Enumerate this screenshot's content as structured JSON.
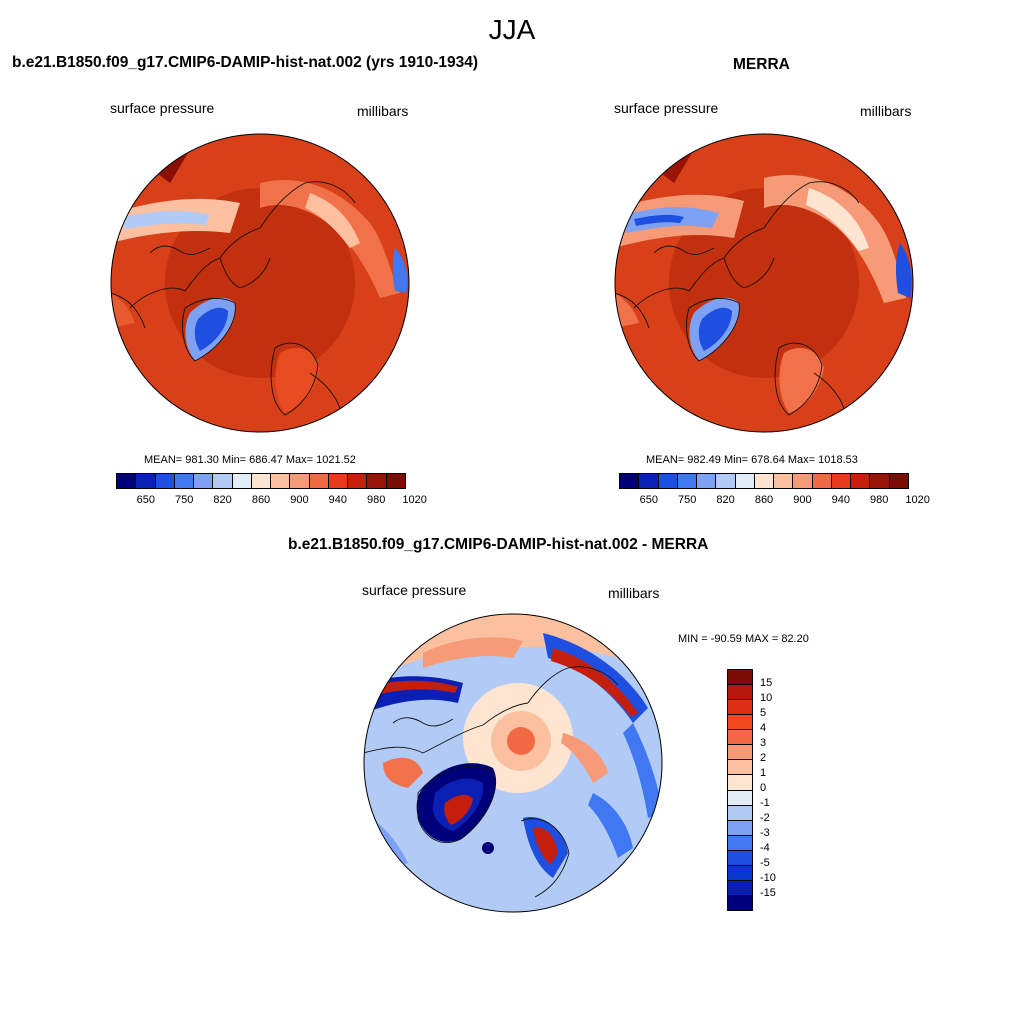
{
  "figure": {
    "title": "JJA"
  },
  "panels": {
    "model": {
      "title": "b.e21.B1850.f09_g17.CMIP6-DAMIP-hist-nat.002 (yrs 1910-1934)",
      "variable": "surface pressure",
      "units": "millibars",
      "stats": "MEAN= 981.30  Min= 686.47  Max= 1021.52"
    },
    "obs": {
      "title": "MERRA",
      "variable": "surface pressure",
      "units": "millibars",
      "stats": "MEAN= 982.49  Min= 678.64  Max= 1018.53"
    },
    "diff": {
      "title": "b.e21.B1850.f09_g17.CMIP6-DAMIP-hist-nat.002 - MERRA",
      "variable": "surface pressure",
      "units": "millibars",
      "stats": "MIN = -90.59 MAX =  82.20"
    }
  },
  "colorbars": {
    "absolute": {
      "ticks": [
        "650",
        "750",
        "820",
        "860",
        "900",
        "940",
        "980",
        "1020"
      ],
      "colors": [
        "#00007a",
        "#0a1fb4",
        "#1f4fe0",
        "#3f78f0",
        "#7ea2f3",
        "#b1cbf6",
        "#e3edf8",
        "#fde5d2",
        "#fbc0a0",
        "#f69a78",
        "#f26a45",
        "#e53c1e",
        "#c41f0c",
        "#9a1307",
        "#7a0b05"
      ]
    },
    "difference": {
      "ticks": [
        "15",
        "10",
        "5",
        "4",
        "3",
        "2",
        "1",
        "0",
        "-1",
        "-2",
        "-3",
        "-4",
        "-5",
        "-10",
        "-15"
      ],
      "colors": [
        "#7a0b05",
        "#b5170b",
        "#dc2f14",
        "#f2491f",
        "#f26a45",
        "#f69a78",
        "#fbc0a0",
        "#fde5d2",
        "#e3edf8",
        "#b1cbf6",
        "#7ea2f3",
        "#3f78f0",
        "#1f4fe0",
        "#0a36d0",
        "#0a1fb4",
        "#00007a"
      ]
    }
  }
}
